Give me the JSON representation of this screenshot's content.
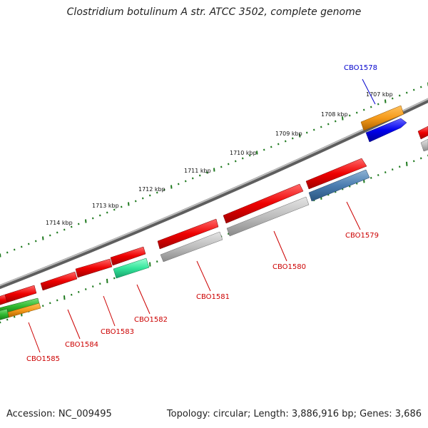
{
  "title": "Clostridium botulinum A str. ATCC 3502, complete genome",
  "footer": {
    "accession": "Accession: NC_009495",
    "summary": "Topology: circular; Length: 3,886,916 bp; Genes: 3,686"
  },
  "colors": {
    "backbone": "#7a7a7a",
    "tick": "#1f7a1f",
    "label_red": "#cc0000",
    "label_blue": "#0000cc"
  },
  "scale_labels": [
    "1707 kbp",
    "1708 kbp",
    "1709 kbp",
    "1710 kbp",
    "1711 kbp",
    "1712 kbp",
    "1713 kbp",
    "1714 kbp"
  ],
  "gene_labels": [
    {
      "text": "CBO1578",
      "color": "#0000cc"
    },
    {
      "text": "CBO1579",
      "color": "#cc0000"
    },
    {
      "text": "CBO1580",
      "color": "#cc0000"
    },
    {
      "text": "CBO1581",
      "color": "#cc0000"
    },
    {
      "text": "CBO1582",
      "color": "#cc0000"
    },
    {
      "text": "CBO1583",
      "color": "#cc0000"
    },
    {
      "text": "CBO1584",
      "color": "#cc0000"
    },
    {
      "text": "CBO1585",
      "color": "#cc0000"
    }
  ]
}
